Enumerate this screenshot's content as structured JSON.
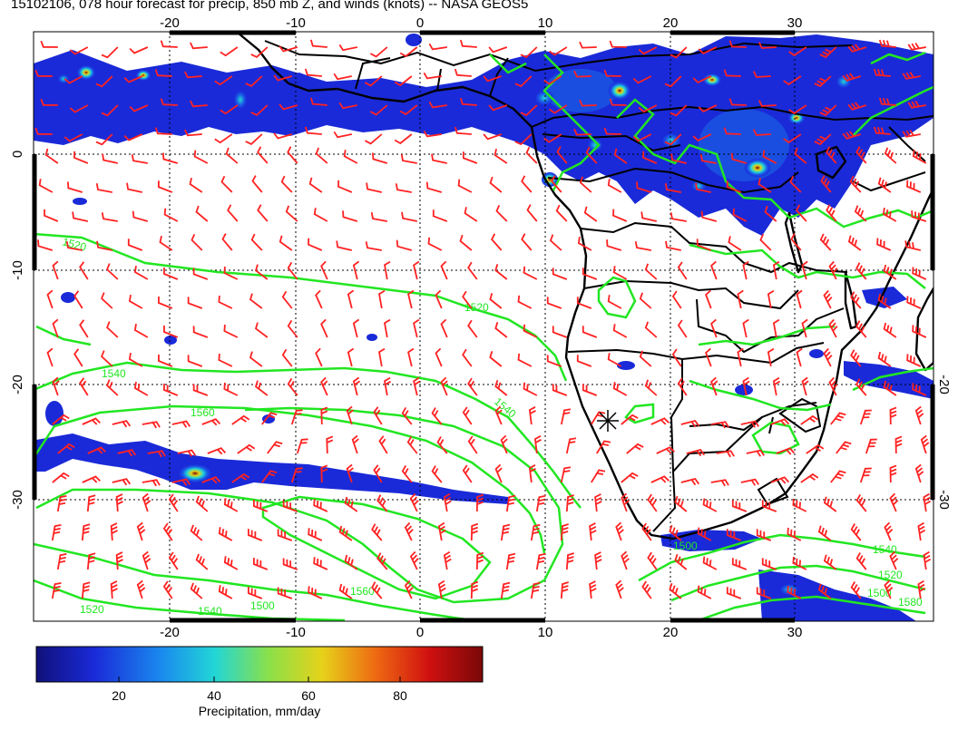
{
  "title": "15102106, 078 hour forecast for precip, 850 mb Z, and winds (knots) -- NASA GEOS5",
  "map": {
    "lon_range": [
      -30,
      41
    ],
    "lat_range": [
      -40,
      10
    ],
    "lon_ticks": [
      "-20",
      "-10",
      "0",
      "10",
      "20",
      "30"
    ],
    "lat_ticks_left": [
      "0",
      "-10",
      "-20",
      "-30"
    ],
    "lat_ticks_right": [
      "-20",
      "-30"
    ],
    "gridlines": "dotted",
    "contour_color": "#22e622",
    "barb_color": "#ff2222",
    "coast_color": "#000000",
    "contour_labels": [
      "1520",
      "1520",
      "1540",
      "1560",
      "1540",
      "1560",
      "1540",
      "1520",
      "1500",
      "1500",
      "1540",
      "1500",
      "1520",
      "1580"
    ]
  },
  "colorbar": {
    "ticks": [
      "20",
      "40",
      "60",
      "80"
    ],
    "label": "Precipitation, mm/day",
    "range": [
      0,
      100
    ],
    "colormap": [
      "#10107a",
      "#1a2ad8",
      "#1a8aee",
      "#22d6d6",
      "#8ae04a",
      "#e6d21a",
      "#ee6a12",
      "#d01010",
      "#7a0808"
    ]
  }
}
